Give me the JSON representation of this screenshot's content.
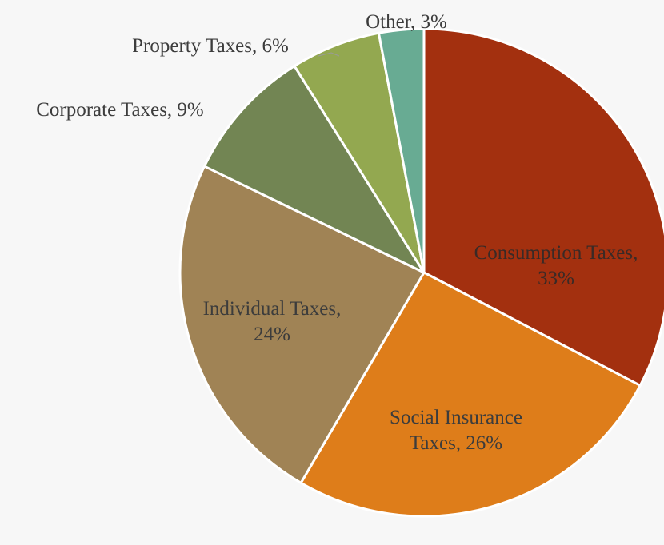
{
  "chart_data": {
    "type": "pie",
    "title": "",
    "slices": [
      {
        "name": "Consumption Taxes",
        "value": 33,
        "label": [
          "Consumption Taxes,",
          "33%"
        ],
        "color": "#a3300f"
      },
      {
        "name": "Social Insurance Taxes",
        "value": 26,
        "label": [
          "Social Insurance",
          "Taxes, 26%"
        ],
        "color": "#de7d1a"
      },
      {
        "name": "Individual Taxes",
        "value": 24,
        "label": [
          "Individual Taxes,",
          "24%"
        ],
        "color": "#a08355"
      },
      {
        "name": "Corporate Taxes",
        "value": 9,
        "label": [
          "Corporate Taxes, 9%"
        ],
        "color": "#728553"
      },
      {
        "name": "Property Taxes",
        "value": 6,
        "label": [
          "Property Taxes, 6%"
        ],
        "color": "#93a850"
      },
      {
        "name": "Other",
        "value": 3,
        "label": [
          "Other, 3%"
        ],
        "color": "#68ab93"
      }
    ],
    "start_angle": "12 o'clock",
    "direction": "clockwise",
    "legend": "none",
    "background": "#f7f7f7"
  }
}
